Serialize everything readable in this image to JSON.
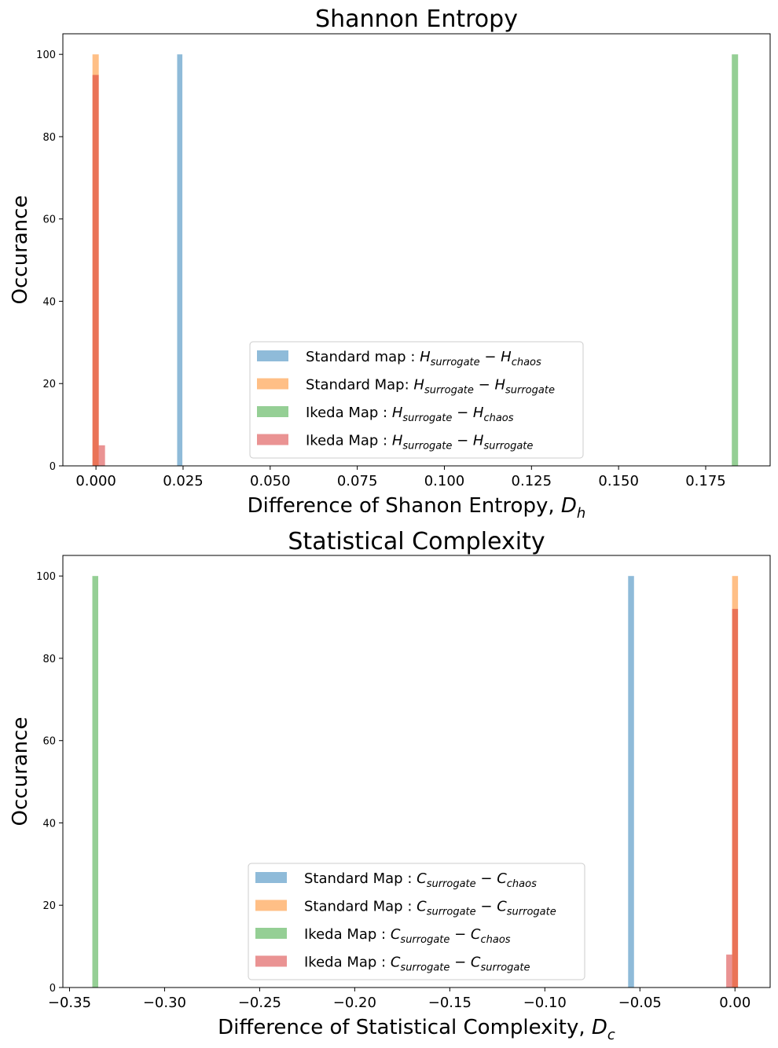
{
  "chart_data": [
    {
      "type": "bar",
      "title": "Shannon Entropy",
      "xlabel": "Difference of Shanon Entropy, ",
      "xlabel_math": {
        "base": "D",
        "sub": "h"
      },
      "ylabel": "Occurance",
      "xlim": [
        -0.0095,
        0.1935
      ],
      "ylim": [
        0,
        105
      ],
      "xticks": [
        {
          "v": 0.0,
          "label": "0.000"
        },
        {
          "v": 0.025,
          "label": "0.025"
        },
        {
          "v": 0.05,
          "label": "0.050"
        },
        {
          "v": 0.075,
          "label": "0.075"
        },
        {
          "v": 0.1,
          "label": "0.100"
        },
        {
          "v": 0.125,
          "label": "0.125"
        },
        {
          "v": 0.15,
          "label": "0.150"
        },
        {
          "v": 0.175,
          "label": "0.175"
        }
      ],
      "yticks": [
        {
          "v": 0,
          "label": "0"
        },
        {
          "v": 20,
          "label": "20"
        },
        {
          "v": 40,
          "label": "40"
        },
        {
          "v": 60,
          "label": "60"
        },
        {
          "v": 80,
          "label": "80"
        },
        {
          "v": 100,
          "label": "100"
        }
      ],
      "legend_position": "lower center",
      "series": [
        {
          "name": "Standard map : ",
          "math": {
            "a": "H",
            "as": "surrogate",
            "b": "H",
            "bs": "chaos"
          },
          "color": "#1f77b4",
          "bars": [
            {
              "x0": 0.0233,
              "x1": 0.0248,
              "y": 100
            }
          ]
        },
        {
          "name": "Standard Map: ",
          "math": {
            "a": "H",
            "as": "surrogate",
            "b": "H",
            "bs": "surrogate"
          },
          "color": "#ff7f0e",
          "bars": [
            {
              "x0": -0.001,
              "x1": 0.0008,
              "y": 100
            }
          ]
        },
        {
          "name": "Ikeda Map : ",
          "math": {
            "a": "H",
            "as": "surrogate",
            "b": "H",
            "bs": "chaos"
          },
          "color": "#2ca02c",
          "bars": [
            {
              "x0": 0.1825,
              "x1": 0.1843,
              "y": 100
            }
          ]
        },
        {
          "name": "Ikeda Map : ",
          "math": {
            "a": "H",
            "as": "surrogate",
            "b": "H",
            "bs": "surrogate"
          },
          "color": "#d62728",
          "bars": [
            {
              "x0": -0.001,
              "x1": 0.0008,
              "y": 95
            },
            {
              "x0": 0.0008,
              "x1": 0.0026,
              "y": 5
            }
          ]
        }
      ]
    },
    {
      "type": "bar",
      "title": "Statistical Complexity",
      "xlabel": "Difference of Statistical Complexity, ",
      "xlabel_math": {
        "base": "D",
        "sub": "c"
      },
      "ylabel": "Occurance",
      "xlim": [
        -0.3535,
        0.0185
      ],
      "ylim": [
        0,
        105
      ],
      "xticks": [
        {
          "v": -0.35,
          "label": "−0.35"
        },
        {
          "v": -0.3,
          "label": "−0.30"
        },
        {
          "v": -0.25,
          "label": "−0.25"
        },
        {
          "v": -0.2,
          "label": "−0.20"
        },
        {
          "v": -0.15,
          "label": "−0.15"
        },
        {
          "v": -0.1,
          "label": "−0.10"
        },
        {
          "v": -0.05,
          "label": "−0.05"
        },
        {
          "v": 0.0,
          "label": "0.00"
        }
      ],
      "yticks": [
        {
          "v": 0,
          "label": "0"
        },
        {
          "v": 20,
          "label": "20"
        },
        {
          "v": 40,
          "label": "40"
        },
        {
          "v": 60,
          "label": "60"
        },
        {
          "v": 80,
          "label": "80"
        },
        {
          "v": 100,
          "label": "100"
        }
      ],
      "legend_position": "lower center",
      "series": [
        {
          "name": "Standard Map : ",
          "math": {
            "a": "C",
            "as": "surrogate",
            "b": "C",
            "bs": "chaos"
          },
          "color": "#1f77b4",
          "bars": [
            {
              "x0": -0.0562,
              "x1": -0.0531,
              "y": 100
            }
          ]
        },
        {
          "name": "Standard Map : ",
          "math": {
            "a": "C",
            "as": "surrogate",
            "b": "C",
            "bs": "surrogate"
          },
          "color": "#ff7f0e",
          "bars": [
            {
              "x0": -0.0015,
              "x1": 0.0016,
              "y": 100
            }
          ]
        },
        {
          "name": "Ikeda Map : ",
          "math": {
            "a": "C",
            "as": "surrogate",
            "b": "C",
            "bs": "chaos"
          },
          "color": "#2ca02c",
          "bars": [
            {
              "x0": -0.338,
              "x1": -0.3349,
              "y": 100
            }
          ]
        },
        {
          "name": "Ikeda Map : ",
          "math": {
            "a": "C",
            "as": "surrogate",
            "b": "C",
            "bs": "surrogate"
          },
          "color": "#d62728",
          "bars": [
            {
              "x0": -0.0015,
              "x1": 0.0016,
              "y": 92
            },
            {
              "x0": -0.0046,
              "x1": -0.0015,
              "y": 8
            }
          ]
        }
      ]
    }
  ]
}
